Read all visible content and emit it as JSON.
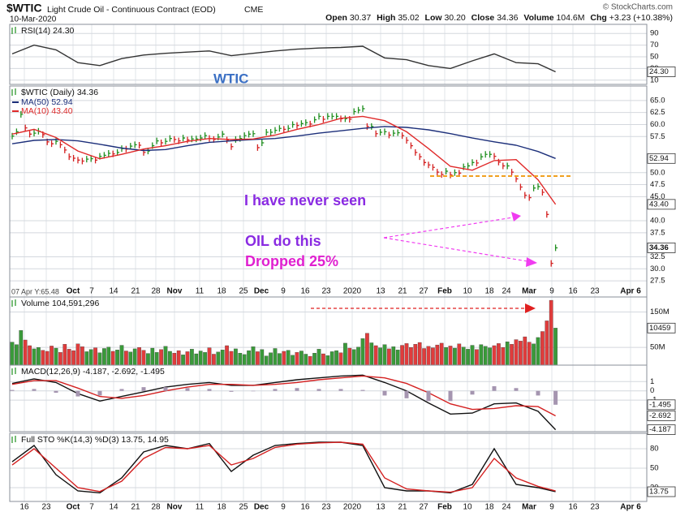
{
  "header": {
    "symbol": "$WTIC",
    "name": "Light Crude Oil - Continuous Contract (EOD)",
    "exchange": "CME",
    "date": "10-Mar-2020",
    "copyright": "© StockCharts.com",
    "stats": [
      {
        "label": "Open",
        "value": "30.37"
      },
      {
        "label": "High",
        "value": "35.02"
      },
      {
        "label": "Low",
        "value": "30.20"
      },
      {
        "label": "Close",
        "value": "34.36"
      },
      {
        "label": "Volume",
        "value": "104.6M"
      },
      {
        "label": "Chg",
        "value": "+3.23 (+10.38%)"
      }
    ]
  },
  "dates": [
    "16",
    "23",
    "Oct",
    "7",
    "14",
    "21",
    "28",
    "Nov",
    "11",
    "18",
    "25",
    "Dec",
    "9",
    "16",
    "23",
    "2020",
    "13",
    "21",
    "27",
    "Feb",
    "10",
    "18",
    "24",
    "Mar",
    "9",
    "16",
    "23",
    "Apr 6"
  ],
  "chart_data": [
    {
      "type": "line",
      "title": "RSI(14) 24.30",
      "annotation": "WTIC",
      "ylim": [
        0,
        100
      ],
      "yticks": [
        90,
        70,
        50,
        30,
        10
      ],
      "grid": true,
      "end_labels": [
        "24.30"
      ],
      "series": [
        {
          "color": "#333333",
          "x": [
            0,
            5,
            10,
            15,
            20,
            25,
            30,
            35,
            40,
            45,
            50,
            55,
            60,
            65,
            70,
            75,
            80,
            85,
            90,
            95,
            100,
            105,
            110,
            115,
            120,
            124
          ],
          "values": [
            55,
            70,
            62,
            40,
            35,
            47,
            53,
            56,
            58,
            60,
            52,
            56,
            60,
            63,
            65,
            66,
            68,
            48,
            45,
            35,
            30,
            43,
            55,
            40,
            38,
            24.3
          ]
        }
      ]
    },
    {
      "type": "stock",
      "title": "$WTIC (Daily) 34.36",
      "note": "07 Apr Y:65.48",
      "up_color": "#1f8f1f",
      "down_color": "#d42020",
      "ylim": [
        26.5,
        67
      ],
      "grid": true,
      "yticks": [
        {
          "value": 65,
          "label": "65.0"
        },
        {
          "value": 62.5,
          "label": "62.5"
        },
        {
          "value": 60,
          "label": "60.0"
        },
        {
          "value": 57.5,
          "label": "57.5"
        },
        {
          "value": 50,
          "label": "50.0"
        },
        {
          "value": 47.5,
          "label": "47.5"
        },
        {
          "value": 45,
          "label": "45.0"
        },
        {
          "value": 40,
          "label": "40.0"
        },
        {
          "value": 37.5,
          "label": "37.5"
        },
        {
          "value": 32.5,
          "label": "32.5"
        },
        {
          "value": 30,
          "label": "30.0"
        },
        {
          "value": 27.5,
          "label": "27.5"
        }
      ],
      "end_labels": [
        "52.94",
        "43.40",
        "34.36"
      ],
      "annotations": [
        "I have never seen",
        "OIL do this",
        "Dropped 25%"
      ],
      "values": [
        57.6,
        58.5,
        62.1,
        59.3,
        58.0,
        58.2,
        58.6,
        57.9,
        56.4,
        56.0,
        56.5,
        55.8,
        54.7,
        53.3,
        53.0,
        52.6,
        52.4,
        52.8,
        52.9,
        52.6,
        53.4,
        53.6,
        54.0,
        53.9,
        54.2,
        55.0,
        54.9,
        55.5,
        55.8,
        55.7,
        54.2,
        54.5,
        55.6,
        56.6,
        56.2,
        56.5,
        57.1,
        56.9,
        56.6,
        57.2,
        56.8,
        57.0,
        57.0,
        57.2,
        57.7,
        57.1,
        56.9,
        57.4,
        58.0,
        56.8,
        55.4,
        56.9,
        57.1,
        57.7,
        58.0,
        58.1,
        55.2,
        56.2,
        58.4,
        58.4,
        58.8,
        59.2,
        59.0,
        59.2,
        60.0,
        59.8,
        60.2,
        60.4,
        60.1,
        61.0,
        61.7,
        61.1,
        61.7,
        61.7,
        61.7,
        61.2,
        61.2,
        61.1,
        62.7,
        63.0,
        63.3,
        59.6,
        59.6,
        58.1,
        58.4,
        58.5,
        57.8,
        58.2,
        58.3,
        57.7,
        56.7,
        55.6,
        54.2,
        53.3,
        52.1,
        51.6,
        51.1,
        50.1,
        49.6,
        50.3,
        49.5,
        50.0,
        49.9,
        51.2,
        51.4,
        52.1,
        52.0,
        53.3,
        53.8,
        53.8,
        53.4,
        52.2,
        51.4,
        51.4,
        50.1,
        48.7,
        47.0,
        45.3,
        44.8,
        46.8,
        47.1,
        45.9,
        41.3,
        31.13,
        34.36
      ],
      "series": [
        {
          "name": "MA(50) 52.94",
          "color": "#1c2f7a",
          "x": [
            0,
            5,
            10,
            15,
            20,
            25,
            30,
            35,
            40,
            45,
            50,
            55,
            60,
            65,
            70,
            75,
            80,
            85,
            90,
            95,
            100,
            105,
            110,
            115,
            120,
            124
          ],
          "values": [
            56.0,
            56.7,
            56.9,
            56.6,
            55.9,
            55.1,
            54.6,
            54.8,
            55.6,
            56.3,
            56.6,
            56.9,
            57.1,
            57.6,
            58.2,
            58.7,
            59.2,
            59.6,
            59.4,
            58.9,
            58.1,
            57.2,
            56.4,
            55.7,
            54.4,
            52.94
          ]
        },
        {
          "name": "MA(10) 43.40",
          "color": "#e02a2a",
          "x": [
            0,
            5,
            10,
            15,
            20,
            25,
            30,
            35,
            40,
            45,
            50,
            55,
            60,
            65,
            70,
            75,
            80,
            85,
            90,
            95,
            100,
            105,
            110,
            115,
            120,
            124
          ],
          "values": [
            58.0,
            59.0,
            57.3,
            54.5,
            52.9,
            53.8,
            54.9,
            55.6,
            56.5,
            57.1,
            56.9,
            57.0,
            57.8,
            59.0,
            60.0,
            61.3,
            61.7,
            60.8,
            58.5,
            55.0,
            51.3,
            50.5,
            52.5,
            52.7,
            48.5,
            43.4
          ]
        }
      ]
    },
    {
      "type": "bar",
      "title": "Volume 104,591,296",
      "up_color": "#3a9a3a",
      "down_color": "#e03c3c",
      "ylim": [
        0,
        190000000
      ],
      "grid": true,
      "yticks": [
        {
          "value": 150000000,
          "label": "150M"
        },
        {
          "value": 50000000,
          "label": "50M"
        }
      ],
      "end_labels": [
        "10459"
      ],
      "values": [
        65000000.0,
        58000000.0,
        98000000.0,
        71000000.0,
        55000000.0,
        46000000.0,
        50000000.0,
        42000000.0,
        39000000.0,
        54000000.0,
        48000000.0,
        36000000.0,
        59000000.0,
        45000000.0,
        41000000.0,
        60000000.0,
        52000000.0,
        38000000.0,
        44000000.0,
        49000000.0,
        35000000.0,
        47000000.0,
        51000000.0,
        39000000.0,
        43000000.0,
        56000000.0,
        40000000.0,
        37000000.0,
        46000000.0,
        50000000.0,
        42000000.0,
        33000000.0,
        48000000.0,
        36000000.0,
        44000000.0,
        53000000.0,
        39000000.0,
        34000000.0,
        41000000.0,
        29000000.0,
        38000000.0,
        45000000.0,
        32000000.0,
        40000000.0,
        36000000.0,
        49000000.0,
        31000000.0,
        37000000.0,
        43000000.0,
        55000000.0,
        39000000.0,
        46000000.0,
        34000000.0,
        30000000.0,
        41000000.0,
        52000000.0,
        38000000.0,
        44000000.0,
        26000000.0,
        35000000.0,
        47000000.0,
        33000000.0,
        39000000.0,
        42000000.0,
        28000000.0,
        36000000.0,
        40000000.0,
        31000000.0,
        25000000.0,
        34000000.0,
        45000000.0,
        32000000.0,
        27000000.0,
        38000000.0,
        41000000.0,
        35000000.0,
        62000000.0,
        48000000.0,
        44000000.0,
        51000000.0,
        75000000.0,
        90000000.0,
        63000000.0,
        55000000.0,
        49000000.0,
        58000000.0,
        46000000.0,
        52000000.0,
        43000000.0,
        56000000.0,
        61000000.0,
        50000000.0,
        59000000.0,
        64000000.0,
        47000000.0,
        53000000.0,
        49000000.0,
        57000000.0,
        62000000.0,
        50000000.0,
        54000000.0,
        48000000.0,
        60000000.0,
        51000000.0,
        45000000.0,
        56000000.0,
        44000000.0,
        58000000.0,
        53000000.0,
        49000000.0,
        55000000.0,
        61000000.0,
        50000000.0,
        66000000.0,
        59000000.0,
        72000000.0,
        68000000.0,
        80000000.0,
        65000000.0,
        60000000.0,
        78000000.0,
        95000000.0,
        125000000.0,
        183000000.0,
        104591296
      ]
    },
    {
      "type": "line",
      "title": "MACD(12,26,9) -4.187, -2.692, -1.495",
      "ylim": [
        -4.4,
        2.6
      ],
      "yticks": [
        1,
        0,
        -1
      ],
      "grid": true,
      "end_labels": [
        "-1.495",
        "-2.692",
        "-4.187"
      ],
      "series": [
        {
          "color": "#111111",
          "x": [
            0,
            5,
            10,
            15,
            20,
            25,
            30,
            35,
            40,
            45,
            50,
            55,
            60,
            65,
            70,
            75,
            80,
            85,
            90,
            95,
            100,
            105,
            110,
            115,
            120,
            124
          ],
          "values": [
            0.8,
            1.3,
            0.9,
            -0.3,
            -1.1,
            -0.6,
            -0.1,
            0.4,
            0.7,
            0.9,
            0.6,
            0.6,
            0.9,
            1.2,
            1.4,
            1.6,
            1.7,
            0.9,
            0.0,
            -1.3,
            -2.5,
            -2.4,
            -1.4,
            -1.3,
            -2.2,
            -4.187
          ]
        },
        {
          "color": "#d42020",
          "x": [
            0,
            5,
            10,
            15,
            20,
            25,
            30,
            35,
            40,
            45,
            50,
            55,
            60,
            65,
            70,
            75,
            80,
            85,
            90,
            95,
            100,
            105,
            110,
            115,
            120,
            124
          ],
          "values": [
            0.7,
            1.1,
            1.1,
            0.3,
            -0.6,
            -0.8,
            -0.5,
            0.0,
            0.4,
            0.7,
            0.7,
            0.6,
            0.7,
            0.9,
            1.2,
            1.4,
            1.6,
            1.4,
            0.8,
            -0.2,
            -1.4,
            -2.0,
            -1.9,
            -1.6,
            -1.7,
            -2.692
          ]
        },
        {
          "type": "bar",
          "color": "#a595b0",
          "x": [
            0,
            5,
            10,
            15,
            20,
            25,
            30,
            35,
            40,
            45,
            50,
            55,
            60,
            65,
            70,
            75,
            80,
            85,
            90,
            95,
            100,
            105,
            110,
            115,
            120,
            124
          ],
          "values": [
            0.1,
            0.2,
            -0.2,
            -0.6,
            -0.5,
            0.2,
            0.4,
            0.4,
            0.3,
            0.2,
            -0.1,
            0.0,
            0.2,
            0.3,
            0.2,
            0.2,
            0.1,
            -0.5,
            -0.8,
            -1.1,
            -1.1,
            -0.4,
            0.5,
            0.3,
            -0.5,
            -1.495
          ]
        }
      ]
    },
    {
      "type": "line",
      "title": "Full STO %K(14,3) %D(3) 13.75, 14.95",
      "ylim": [
        0,
        100
      ],
      "yticks": [
        80,
        50,
        20
      ],
      "grid": true,
      "end_labels": [
        "13.75"
      ],
      "series": [
        {
          "color": "#111111",
          "x": [
            0,
            5,
            10,
            15,
            20,
            25,
            30,
            35,
            40,
            45,
            50,
            55,
            60,
            65,
            70,
            75,
            80,
            85,
            90,
            95,
            100,
            105,
            110,
            115,
            120,
            124
          ],
          "values": [
            60,
            85,
            40,
            15,
            12,
            35,
            75,
            85,
            80,
            88,
            45,
            70,
            85,
            88,
            90,
            90,
            85,
            20,
            15,
            15,
            12,
            25,
            80,
            25,
            20,
            13.75
          ]
        },
        {
          "color": "#d42020",
          "x": [
            0,
            5,
            10,
            15,
            20,
            25,
            30,
            35,
            40,
            45,
            50,
            55,
            60,
            65,
            70,
            75,
            80,
            85,
            90,
            95,
            100,
            105,
            110,
            115,
            120,
            124
          ],
          "values": [
            55,
            80,
            50,
            20,
            14,
            30,
            65,
            82,
            80,
            85,
            55,
            65,
            82,
            87,
            89,
            90,
            87,
            35,
            18,
            15,
            13,
            20,
            65,
            35,
            22,
            14.95
          ]
        }
      ]
    }
  ]
}
